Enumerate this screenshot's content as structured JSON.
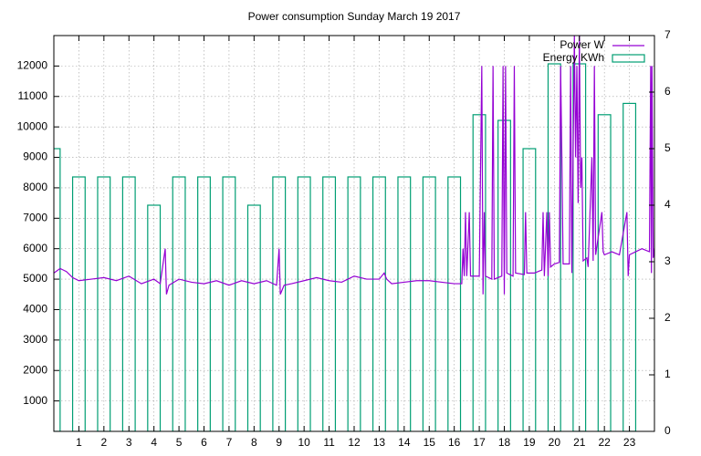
{
  "chart_data": {
    "type": "line",
    "title": "Power consumption Sunday March 19 2017",
    "xlim": [
      0,
      24
    ],
    "xticks": [
      1,
      2,
      3,
      4,
      5,
      6,
      7,
      8,
      9,
      10,
      11,
      12,
      13,
      14,
      15,
      16,
      17,
      18,
      19,
      20,
      21,
      22,
      23
    ],
    "ylim": [
      0,
      13000
    ],
    "yticks": [
      1000,
      2000,
      3000,
      4000,
      5000,
      6000,
      7000,
      8000,
      9000,
      10000,
      11000,
      12000
    ],
    "y2lim": [
      0,
      7
    ],
    "y2ticks": [
      0,
      1,
      2,
      3,
      4,
      5,
      6,
      7
    ],
    "grid": true,
    "legend": "top right",
    "series": [
      {
        "name": "Power W",
        "color": "#9400d3",
        "type": "line",
        "x": [
          0,
          0.25,
          0.5,
          0.75,
          1,
          1.5,
          2,
          2.5,
          3,
          3.5,
          4,
          4.25,
          4.45,
          4.5,
          4.6,
          5,
          5.5,
          6,
          6.5,
          7,
          7.5,
          8,
          8.5,
          8.9,
          9.0,
          9.05,
          9.2,
          9.5,
          10,
          10.5,
          11,
          11.5,
          12,
          12.5,
          13,
          13.2,
          13.3,
          13.5,
          14,
          14.5,
          15,
          15.5,
          16,
          16.3,
          16.35,
          16.4,
          16.45,
          16.5,
          16.6,
          16.65,
          17.0,
          17.1,
          17.15,
          17.2,
          17.25,
          17.5,
          17.55,
          17.6,
          17.9,
          17.95,
          18.0,
          18.05,
          18.1,
          18.35,
          18.4,
          18.45,
          18.8,
          18.85,
          18.9,
          19.2,
          19.5,
          19.55,
          19.6,
          19.7,
          19.75,
          19.8,
          19.85,
          20.0,
          20.2,
          20.25,
          20.3,
          20.35,
          20.6,
          20.65,
          20.7,
          20.8,
          20.85,
          20.9,
          20.95,
          21.0,
          21.05,
          21.1,
          21.15,
          21.3,
          21.35,
          21.5,
          21.55,
          21.6,
          21.65,
          21.9,
          21.95,
          22.0,
          22.3,
          22.6,
          22.9,
          22.95,
          23.0,
          23.5,
          23.8,
          23.85,
          23.88,
          23.9,
          23.95,
          24
        ],
        "values": [
          5200,
          5350,
          5250,
          5050,
          4950,
          5000,
          5050,
          4950,
          5100,
          4850,
          5000,
          4850,
          6000,
          4500,
          4800,
          5000,
          4900,
          4850,
          4950,
          4800,
          4950,
          4850,
          4950,
          4800,
          6000,
          4500,
          4800,
          4850,
          4950,
          5050,
          4950,
          4900,
          5100,
          5000,
          5000,
          5200,
          5000,
          4850,
          4900,
          4950,
          4950,
          4900,
          4850,
          4850,
          6000,
          5100,
          7200,
          5100,
          7200,
          5100,
          5100,
          12000,
          4500,
          7200,
          5100,
          5000,
          12000,
          5000,
          5100,
          12000,
          4500,
          12000,
          5200,
          5100,
          12000,
          5200,
          5150,
          7200,
          5200,
          5200,
          5300,
          7200,
          5100,
          7200,
          5100,
          7200,
          5400,
          5500,
          5550,
          12000,
          9000,
          5500,
          5500,
          12000,
          5200,
          13000,
          9000,
          12000,
          7500,
          13000,
          8000,
          9000,
          5600,
          5700,
          5400,
          9000,
          5600,
          12000,
          5800,
          7200,
          5900,
          5800,
          5900,
          5800,
          7200,
          5100,
          5800,
          6000,
          5900,
          12000,
          5200,
          12000,
          5700,
          6000
        ]
      },
      {
        "name": "Energy KWh",
        "color": "#009e73",
        "type": "boxes",
        "axis": "y2",
        "x": [
          0,
          1,
          2,
          3,
          4,
          5,
          6,
          7,
          8,
          9,
          10,
          11,
          12,
          13,
          14,
          15,
          16,
          17,
          18,
          19,
          20,
          21,
          22,
          23
        ],
        "values": [
          5.0,
          4.5,
          4.5,
          4.5,
          4.0,
          4.5,
          4.5,
          4.5,
          4.0,
          4.5,
          4.5,
          4.5,
          4.5,
          4.5,
          4.5,
          4.5,
          4.5,
          5.6,
          5.5,
          5.0,
          6.5,
          6.5,
          5.6,
          5.8
        ]
      }
    ]
  }
}
